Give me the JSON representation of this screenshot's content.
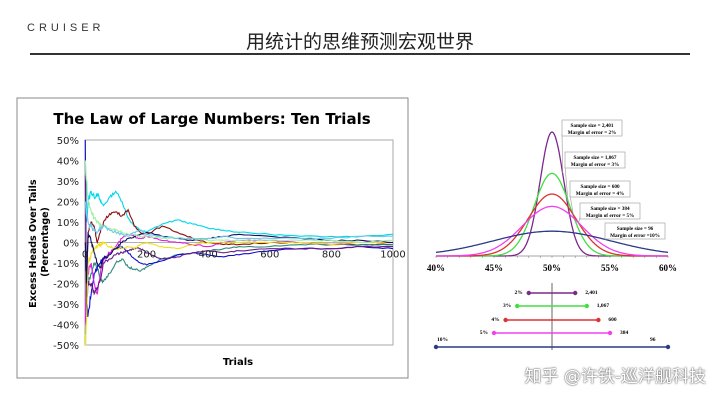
{
  "header": {
    "logo": "CRUISER",
    "title": "用统计的思维预测宏观世界"
  },
  "watermark": "知乎 @许铁-巡洋舰科技",
  "chart_data": [
    {
      "type": "line",
      "title": "The Law of Large Numbers: Ten Trials",
      "xlabel": "Trials",
      "ylabel": "Excess Heads Over Tails (Percentage)",
      "xlim": [
        0,
        1000
      ],
      "ylim": [
        -50,
        50
      ],
      "xticks": [
        "0",
        "200",
        "400",
        "600",
        "800",
        "1000"
      ],
      "yticks": [
        "50%",
        "40%",
        "30%",
        "20%",
        "10%",
        "0%",
        "-10%",
        "-20%",
        "-30%",
        "-40%",
        "-50%"
      ],
      "grid": false,
      "x": [
        1,
        5,
        10,
        20,
        30,
        40,
        50,
        60,
        80,
        100,
        120,
        140,
        160,
        180,
        200,
        250,
        300,
        350,
        400,
        450,
        500,
        600,
        700,
        800,
        900,
        1000
      ],
      "series": [
        {
          "color": "#00d8e8",
          "values": [
            40,
            10,
            20,
            25,
            22,
            24,
            20,
            18,
            22,
            25,
            20,
            12,
            8,
            6,
            5,
            9,
            11,
            9,
            7,
            6,
            5,
            4,
            3,
            3,
            3,
            4
          ]
        },
        {
          "color": "#8b1010",
          "values": [
            0,
            -20,
            5,
            10,
            8,
            0,
            5,
            10,
            14,
            15,
            13,
            16,
            8,
            5,
            4,
            8,
            5,
            2,
            0,
            -1,
            -1,
            0,
            0,
            -1,
            -1,
            -1
          ]
        },
        {
          "color": "#2e8b7b",
          "values": [
            -50,
            -30,
            -20,
            -15,
            -10,
            -12,
            -18,
            -19,
            -15,
            -10,
            -8,
            -12,
            -13,
            -14,
            -12,
            -8,
            -6,
            -5,
            -4,
            -3,
            -2,
            -2,
            -1,
            -1,
            -1,
            -1
          ]
        },
        {
          "color": "#1010d0",
          "values": [
            50,
            -30,
            -35,
            -25,
            -15,
            -12,
            -10,
            -8,
            -5,
            -3,
            -2,
            -5,
            -8,
            -10,
            -11,
            -9,
            -6,
            -5,
            -6,
            -7,
            -6,
            -4,
            -3,
            -3,
            -2,
            -3
          ]
        },
        {
          "color": "#e020e0",
          "values": [
            -40,
            -20,
            -15,
            -10,
            -20,
            -25,
            -15,
            -8,
            -5,
            -2,
            2,
            4,
            3,
            2,
            3,
            1,
            0,
            -1,
            -2,
            0,
            1,
            1,
            0,
            -1,
            0,
            0
          ]
        },
        {
          "color": "#6a1a8a",
          "values": [
            33,
            -30,
            -20,
            -20,
            -25,
            -22,
            -18,
            -10,
            -8,
            -6,
            -5,
            -4,
            -3,
            -3,
            -5,
            -8,
            -7,
            -5,
            -4,
            -5,
            -4,
            -3,
            -3,
            -3,
            -2,
            -2
          ]
        },
        {
          "color": "#f0e020",
          "values": [
            -50,
            -40,
            -10,
            -5,
            -3,
            -2,
            -1,
            0,
            -2,
            -3,
            -3,
            -2,
            -3,
            -1,
            0,
            -2,
            -3,
            -1,
            0,
            0,
            0,
            0,
            0,
            -1,
            0,
            0
          ]
        },
        {
          "color": "#101060",
          "values": [
            0,
            -20,
            5,
            0,
            -5,
            -10,
            -12,
            -8,
            -6,
            -3,
            0,
            2,
            3,
            4,
            5,
            3,
            2,
            1,
            2,
            3,
            4,
            3,
            2,
            1,
            1,
            0
          ]
        },
        {
          "color": "#a0f0a0",
          "values": [
            40,
            30,
            20,
            15,
            12,
            10,
            9,
            8,
            7,
            6,
            5,
            4,
            4,
            3,
            3,
            2,
            2,
            2,
            1,
            1,
            1,
            1,
            1,
            1,
            0,
            1
          ]
        },
        {
          "color": "#70c8e8",
          "values": [
            20,
            15,
            10,
            8,
            6,
            5,
            7,
            8,
            6,
            5,
            4,
            3,
            5,
            6,
            4,
            3,
            2,
            2,
            2,
            3,
            2,
            2,
            2,
            2,
            3,
            3
          ]
        }
      ]
    },
    {
      "type": "line",
      "xlim": [
        40,
        60
      ],
      "xticks": [
        "40%",
        "45%",
        "50%",
        "55%",
        "60%"
      ],
      "center": 50,
      "series": [
        {
          "sample_size": "2,401",
          "margin": 2,
          "margin_label": "2%",
          "label1": "Sample size = 2,401",
          "label2": "Margin of error = 2%",
          "color": "#7a2a8a"
        },
        {
          "sample_size": "1,067",
          "margin": 3,
          "margin_label": "3%",
          "label1": "Sample size = 1,067",
          "label2": "Margin of error = 3%",
          "color": "#40e040"
        },
        {
          "sample_size": "600",
          "margin": 4,
          "margin_label": "4%",
          "label1": "Sample size = 600",
          "label2": "Margin of error = 4%",
          "color": "#e03030"
        },
        {
          "sample_size": "384",
          "margin": 5,
          "margin_label": "5%",
          "label1": "Sample size = 384",
          "label2": "Margin of error = 5%",
          "color": "#f040f0"
        },
        {
          "sample_size": "96",
          "margin": 10,
          "margin_label": "10%",
          "label1": "Sample size = 96",
          "label2": "Margin of error =10%",
          "color": "#2a3a8a"
        }
      ]
    }
  ]
}
